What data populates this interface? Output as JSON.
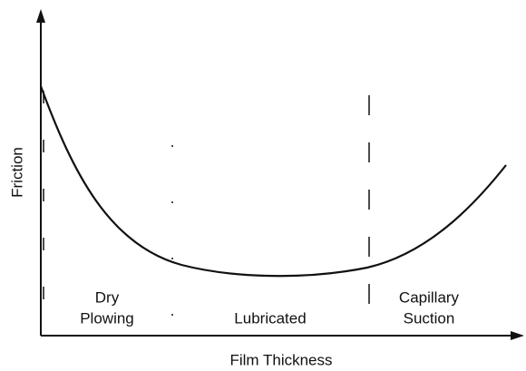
{
  "axes": {
    "y_label": "Friction",
    "x_label": "Film Thickness"
  },
  "regions": [
    {
      "lines": [
        "Dry",
        "Plowing"
      ]
    },
    {
      "lines": [
        "Lubricated"
      ]
    },
    {
      "lines": [
        "Capillary",
        "Suction"
      ]
    }
  ]
}
